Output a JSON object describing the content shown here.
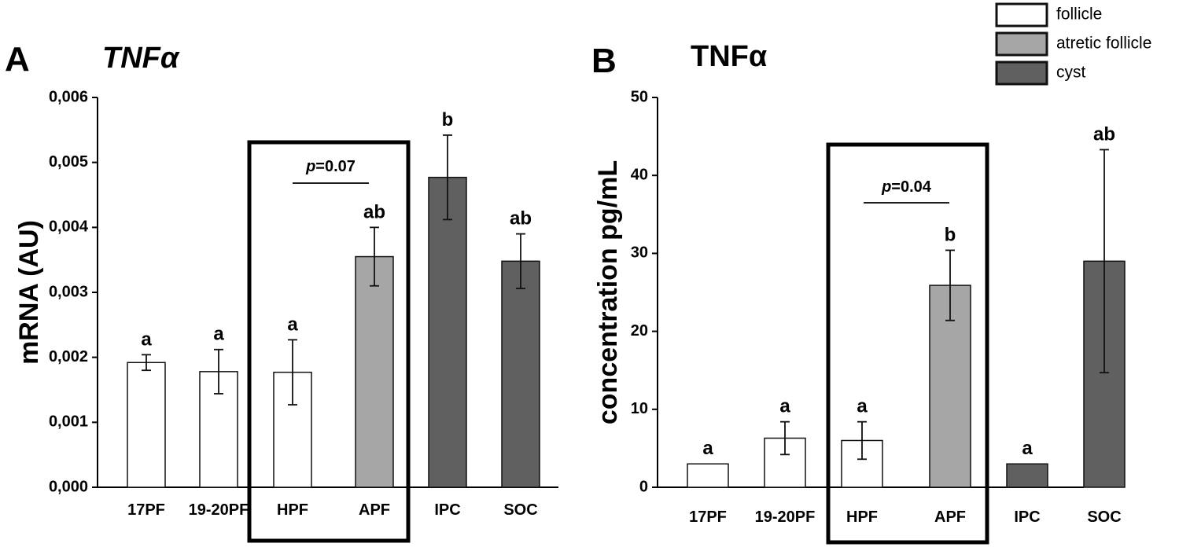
{
  "colors": {
    "follicle": "#ffffff",
    "atretic_follicle": "#a6a6a6",
    "cyst": "#606060"
  },
  "legend": [
    {
      "label": "follicle",
      "color_key": "follicle"
    },
    {
      "label": "atretic follicle",
      "color_key": "atretic_follicle"
    },
    {
      "label": "cyst",
      "color_key": "cyst"
    }
  ],
  "chart_data": [
    {
      "panel": "A",
      "type": "bar",
      "title": "TNFα",
      "title_italic": true,
      "xlabel": "",
      "ylabel": "mRNA (AU)",
      "ylim": [
        0,
        0.006
      ],
      "yticks": [
        0,
        0.001,
        0.002,
        0.003,
        0.004,
        0.005,
        0.006
      ],
      "ytick_labels": [
        "0,000",
        "0,001",
        "0,002",
        "0,003",
        "0,004",
        "0,005",
        "0,006"
      ],
      "categories": [
        "17PF",
        "19-20PF",
        "HPF",
        "APF",
        "IPC",
        "SOC"
      ],
      "values": [
        0.00192,
        0.00178,
        0.00177,
        0.00355,
        0.00477,
        0.00348
      ],
      "errors": [
        0.00012,
        0.00034,
        0.0005,
        0.00045,
        0.00065,
        0.00042
      ],
      "groups": [
        "follicle",
        "follicle",
        "follicle",
        "atretic_follicle",
        "cyst",
        "cyst"
      ],
      "sig_letters": [
        "a",
        "a",
        "a",
        "ab",
        "b",
        "ab"
      ],
      "comparison": {
        "between": [
          "HPF",
          "APF"
        ],
        "p_symbol": "p",
        "p_value": "=0.07"
      }
    },
    {
      "panel": "B",
      "type": "bar",
      "title": "TNFα",
      "title_italic": false,
      "xlabel": "",
      "ylabel": "concentration pg/mL",
      "ylim": [
        0,
        50
      ],
      "yticks": [
        0,
        10,
        20,
        30,
        40,
        50
      ],
      "ytick_labels": [
        "0",
        "10",
        "20",
        "30",
        "40",
        "50"
      ],
      "categories": [
        "17PF",
        "19-20PF",
        "HPF",
        "APF",
        "IPC",
        "SOC"
      ],
      "values": [
        3.0,
        6.3,
        6.0,
        25.9,
        3.0,
        29.0
      ],
      "errors": [
        0,
        2.1,
        2.4,
        4.5,
        0,
        14.3
      ],
      "groups": [
        "follicle",
        "follicle",
        "follicle",
        "atretic_follicle",
        "cyst",
        "cyst"
      ],
      "sig_letters": [
        "a",
        "a",
        "a",
        "b",
        "a",
        "ab"
      ],
      "comparison": {
        "between": [
          "HPF",
          "APF"
        ],
        "p_symbol": "p",
        "p_value": "=0.04"
      }
    }
  ]
}
